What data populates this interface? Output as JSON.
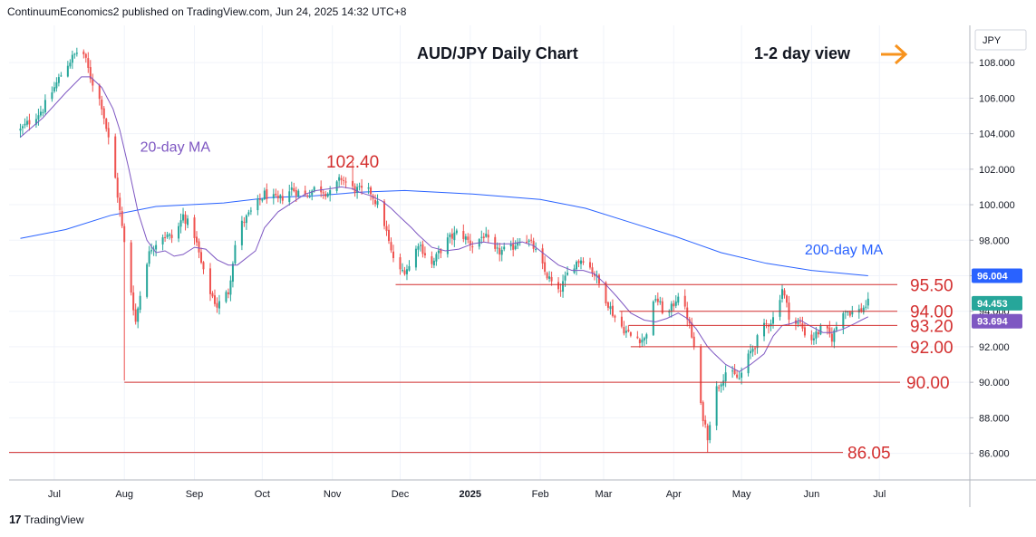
{
  "header": {
    "text": "ContinuumEconomics2 published on TradingView.com, Jun 24, 2025 14:32 UTC+8"
  },
  "footer": {
    "brand": "TradingView",
    "logo_icon": "tradingview-logo-icon"
  },
  "colors": {
    "up": "#26a69a",
    "down": "#ef5350",
    "ma20": "#7e57c2",
    "ma200": "#2962ff",
    "level": "#d32f2f",
    "arrow": "#f7931e"
  },
  "chart_data": {
    "type": "candlestick",
    "title": "AUD/JPY Daily Chart",
    "view": "1-2 day view",
    "currency": "JPY",
    "y_ticks": [
      "108.000",
      "106.000",
      "104.000",
      "102.000",
      "100.000",
      "98.000",
      "96.000",
      "94.000",
      "92.000",
      "90.000",
      "88.000",
      "86.000"
    ],
    "ylim": [
      84.5,
      110.1
    ],
    "x_ticks": [
      {
        "label": "Jul",
        "day": 15
      },
      {
        "label": "Aug",
        "day": 46
      },
      {
        "label": "Sep",
        "day": 77
      },
      {
        "label": "Oct",
        "day": 107
      },
      {
        "label": "Nov",
        "day": 138
      },
      {
        "label": "Dec",
        "day": 168
      },
      {
        "label": "2025",
        "day": 199
      },
      {
        "label": "Feb",
        "day": 230
      },
      {
        "label": "Mar",
        "day": 258
      },
      {
        "label": "Apr",
        "day": 289
      },
      {
        "label": "May",
        "day": 319
      },
      {
        "label": "Jun",
        "day": 350
      },
      {
        "label": "Jul",
        "day": 380
      }
    ],
    "xlim": [
      -5,
      420
    ],
    "path_anchors": [
      [
        0,
        104.2
      ],
      [
        10,
        105.4
      ],
      [
        20,
        107.8
      ],
      [
        27,
        108.9
      ],
      [
        31,
        107.2
      ],
      [
        36,
        105.6
      ],
      [
        41,
        102.4
      ],
      [
        44,
        99.6
      ],
      [
        48,
        96.0
      ],
      [
        51,
        93.4
      ],
      [
        55,
        96.5
      ],
      [
        58,
        97.6
      ],
      [
        63,
        98.3
      ],
      [
        68,
        98.1
      ],
      [
        72,
        99.4
      ],
      [
        77,
        98.3
      ],
      [
        82,
        95.6
      ],
      [
        87,
        94.3
      ],
      [
        92,
        95.1
      ],
      [
        96,
        98.6
      ],
      [
        104,
        99.9
      ],
      [
        108,
        100.6
      ],
      [
        114,
        100.2
      ],
      [
        120,
        100.9
      ],
      [
        126,
        100.5
      ],
      [
        131,
        101.0
      ],
      [
        137,
        100.6
      ],
      [
        142,
        101.5
      ],
      [
        147,
        100.9
      ],
      [
        150,
        100.8
      ],
      [
        155,
        100.7
      ],
      [
        160,
        99.5
      ],
      [
        164,
        97.3
      ],
      [
        168,
        96.2
      ],
      [
        173,
        96.6
      ],
      [
        176,
        97.9
      ],
      [
        182,
        96.6
      ],
      [
        188,
        97.9
      ],
      [
        194,
        98.5
      ],
      [
        200,
        97.7
      ],
      [
        205,
        98.3
      ],
      [
        210,
        97.3
      ],
      [
        217,
        97.5
      ],
      [
        222,
        98.3
      ],
      [
        227,
        97.6
      ],
      [
        232,
        96.2
      ],
      [
        238,
        95.0
      ],
      [
        244,
        96.6
      ],
      [
        249,
        97.0
      ],
      [
        254,
        96.1
      ],
      [
        259,
        94.7
      ],
      [
        264,
        93.4
      ],
      [
        270,
        92.6
      ],
      [
        276,
        92.4
      ],
      [
        281,
        94.8
      ],
      [
        286,
        93.6
      ],
      [
        291,
        95.0
      ],
      [
        295,
        93.7
      ],
      [
        299,
        91.4
      ],
      [
        301,
        88.6
      ],
      [
        304,
        87.0
      ],
      [
        307,
        89.4
      ],
      [
        312,
        90.6
      ],
      [
        318,
        90.2
      ],
      [
        323,
        91.7
      ],
      [
        329,
        93.1
      ],
      [
        333,
        93.6
      ],
      [
        337,
        95.3
      ],
      [
        341,
        93.3
      ],
      [
        345,
        93.3
      ],
      [
        349,
        92.3
      ],
      [
        355,
        93.1
      ],
      [
        359,
        92.5
      ],
      [
        364,
        94.1
      ],
      [
        369,
        93.9
      ],
      [
        372,
        94.1
      ],
      [
        375,
        94.45
      ]
    ],
    "extremes": [
      {
        "day": 27,
        "high": 109.4
      },
      {
        "day": 46,
        "low": 90.1
      },
      {
        "day": 147,
        "high": 102.4
      },
      {
        "day": 304,
        "low": 86.05
      }
    ],
    "ma20": [
      [
        0,
        103.8
      ],
      [
        10,
        104.9
      ],
      [
        20,
        106.3
      ],
      [
        27,
        107.2
      ],
      [
        31,
        107.2
      ],
      [
        36,
        106.6
      ],
      [
        41,
        105.4
      ],
      [
        44,
        104.2
      ],
      [
        48,
        102.0
      ],
      [
        52,
        99.6
      ],
      [
        56,
        98.0
      ],
      [
        60,
        97.3
      ],
      [
        64,
        97.4
      ],
      [
        68,
        97.1
      ],
      [
        72,
        97.2
      ],
      [
        77,
        97.6
      ],
      [
        82,
        97.5
      ],
      [
        87,
        96.9
      ],
      [
        92,
        96.6
      ],
      [
        96,
        96.6
      ],
      [
        104,
        97.4
      ],
      [
        108,
        98.7
      ],
      [
        114,
        99.6
      ],
      [
        120,
        100.1
      ],
      [
        126,
        100.6
      ],
      [
        131,
        100.8
      ],
      [
        137,
        100.9
      ],
      [
        142,
        101.0
      ],
      [
        147,
        100.9
      ],
      [
        150,
        100.7
      ],
      [
        155,
        100.5
      ],
      [
        160,
        100.2
      ],
      [
        164,
        99.8
      ],
      [
        168,
        99.3
      ],
      [
        173,
        98.7
      ],
      [
        176,
        98.3
      ],
      [
        182,
        97.6
      ],
      [
        188,
        97.4
      ],
      [
        194,
        97.5
      ],
      [
        200,
        97.8
      ],
      [
        205,
        97.9
      ],
      [
        210,
        97.8
      ],
      [
        217,
        97.8
      ],
      [
        222,
        97.9
      ],
      [
        227,
        97.7
      ],
      [
        232,
        97.2
      ],
      [
        238,
        96.6
      ],
      [
        244,
        96.3
      ],
      [
        249,
        96.3
      ],
      [
        254,
        96.1
      ],
      [
        259,
        95.5
      ],
      [
        264,
        94.8
      ],
      [
        270,
        93.9
      ],
      [
        276,
        93.5
      ],
      [
        281,
        93.4
      ],
      [
        286,
        93.6
      ],
      [
        291,
        93.9
      ],
      [
        295,
        93.6
      ],
      [
        299,
        93.0
      ],
      [
        304,
        92.0
      ],
      [
        307,
        91.6
      ],
      [
        312,
        91.0
      ],
      [
        318,
        90.6
      ],
      [
        323,
        91.0
      ],
      [
        329,
        91.6
      ],
      [
        333,
        92.6
      ],
      [
        337,
        93.2
      ],
      [
        341,
        93.3
      ],
      [
        345,
        93.5
      ],
      [
        349,
        93.2
      ],
      [
        355,
        92.8
      ],
      [
        359,
        92.8
      ],
      [
        364,
        93.0
      ],
      [
        369,
        93.3
      ],
      [
        372,
        93.5
      ],
      [
        375,
        93.69
      ]
    ],
    "ma200": [
      [
        0,
        98.1
      ],
      [
        20,
        98.6
      ],
      [
        40,
        99.4
      ],
      [
        60,
        99.9
      ],
      [
        90,
        100.1
      ],
      [
        110,
        100.4
      ],
      [
        130,
        100.5
      ],
      [
        150,
        100.7
      ],
      [
        170,
        100.8
      ],
      [
        200,
        100.6
      ],
      [
        230,
        100.3
      ],
      [
        250,
        99.8
      ],
      [
        270,
        99.0
      ],
      [
        290,
        98.2
      ],
      [
        310,
        97.3
      ],
      [
        330,
        96.7
      ],
      [
        350,
        96.3
      ],
      [
        375,
        96.0
      ]
    ],
    "series": [
      {
        "name": "20-day MA",
        "last": "93.694"
      },
      {
        "name": "200-day MA",
        "last": "96.004"
      },
      {
        "name": "AUD/JPY",
        "last": "94.453"
      }
    ],
    "levels": [
      {
        "label": "95.50",
        "value": 95.5,
        "x_start": 166
      },
      {
        "label": "94.00",
        "value": 94.0,
        "x_start": 265
      },
      {
        "label": "93.20",
        "value": 93.2,
        "x_start": 269
      },
      {
        "label": "92.00",
        "value": 92.0,
        "x_start": 270
      },
      {
        "label": "90.00",
        "value": 90.0,
        "x_start": 46
      },
      {
        "label": "86.05",
        "value": 86.05,
        "x_start": -5
      }
    ],
    "annotations": [
      {
        "text": "102.40",
        "day": 147,
        "value": 102.4
      },
      {
        "text": "20-day MA",
        "day": 53,
        "value": 103.3
      },
      {
        "text": "200-day MA",
        "day": 347,
        "value": 97.5
      }
    ]
  }
}
